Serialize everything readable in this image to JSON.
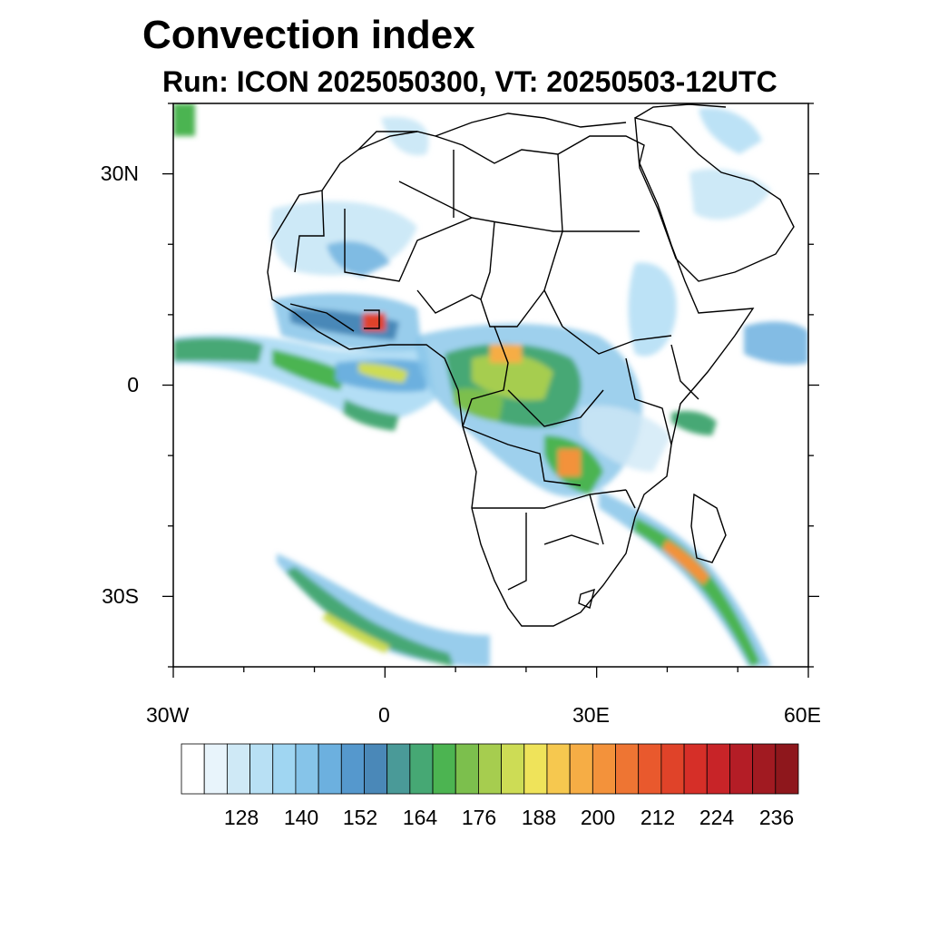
{
  "title": "Convection index",
  "subtitle": "Run: ICON 2025050300,  VT: 20250503-12UTC",
  "map": {
    "lon_range": [
      -30,
      60
    ],
    "lat_range": [
      -40,
      40
    ],
    "y_ticks": [
      {
        "lat": 30,
        "label": "30N"
      },
      {
        "lat": 0,
        "label": "0"
      },
      {
        "lat": -30,
        "label": "30S"
      }
    ],
    "x_ticks": [
      {
        "lon": -30,
        "label": "30W"
      },
      {
        "lon": 0,
        "label": "0"
      },
      {
        "lon": 30,
        "label": "30E"
      },
      {
        "lon": 60,
        "label": "60E"
      }
    ]
  },
  "colorbar": {
    "colors": [
      "#ffffff",
      "#e8f4fb",
      "#cfe9f6",
      "#b8e0f4",
      "#a0d6f2",
      "#86c4e9",
      "#6cb0df",
      "#5598cd",
      "#4a88b8",
      "#4a9a98",
      "#46a874",
      "#4cb451",
      "#7cbf4d",
      "#a6cd4f",
      "#cddc55",
      "#efe35a",
      "#f6c84f",
      "#f6ad45",
      "#f3923b",
      "#ee7533",
      "#e9592d",
      "#e04329",
      "#d62f28",
      "#c82428",
      "#b41d26",
      "#a11a21",
      "#8e171c"
    ],
    "labels": [
      "128",
      "140",
      "152",
      "164",
      "176",
      "188",
      "200",
      "212",
      "224",
      "236"
    ]
  }
}
